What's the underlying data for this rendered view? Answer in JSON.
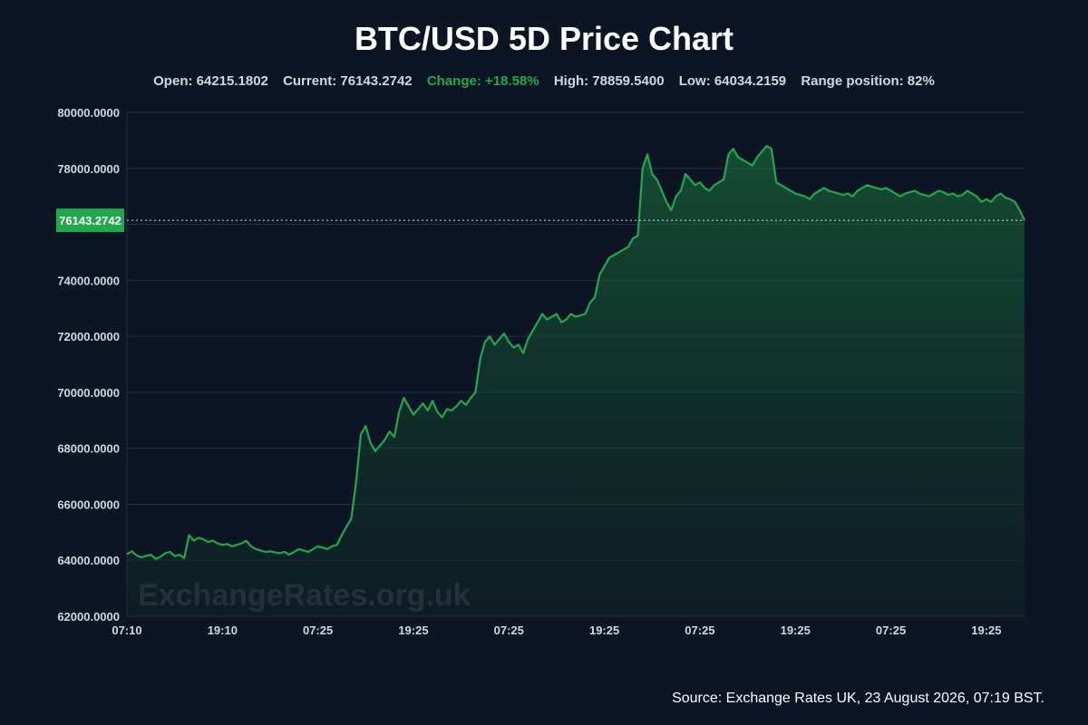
{
  "header": {
    "title": "BTC/USD 5D Price Chart"
  },
  "stats": {
    "open": "Open: 64215.1802",
    "current": "Current: 76143.2742",
    "change": "Change: +18.58%",
    "high": "High: 78859.5400",
    "low": "Low: 64034.2159",
    "range_position": "Range position: 82%"
  },
  "footer": {
    "source": "Source: Exchange Rates UK, 23 August 2026, 07:19 BST."
  },
  "colors": {
    "background": "#0d1524",
    "line": "#22a84c",
    "badge": "#22a84c",
    "grid": "#243048",
    "text": "#cfd6e4"
  },
  "chart_data": {
    "type": "area",
    "watermark": "ExchangeRates.org.uk",
    "current_label": "76143.2742",
    "current_value": 76143.2742,
    "ylim": [
      62000,
      80000
    ],
    "yticks": [
      62000,
      64000,
      66000,
      68000,
      70000,
      72000,
      74000,
      76000,
      78000,
      80000
    ],
    "ytick_labels": [
      "62000.0000",
      "64000.0000",
      "66000.0000",
      "68000.0000",
      "70000.0000",
      "72000.0000",
      "74000.0000",
      "",
      "78000.0000",
      "80000.0000"
    ],
    "x_ticks": [
      {
        "index": 0,
        "label": "07:10"
      },
      {
        "index": 20,
        "label": "19:10"
      },
      {
        "index": 40,
        "label": "07:25"
      },
      {
        "index": 60,
        "label": "19:25"
      },
      {
        "index": 80,
        "label": "07:25"
      },
      {
        "index": 100,
        "label": "19:25"
      },
      {
        "index": 120,
        "label": "07:25"
      },
      {
        "index": 140,
        "label": "19:25"
      },
      {
        "index": 160,
        "label": "07:25"
      },
      {
        "index": 180,
        "label": "19:25"
      }
    ],
    "series": [
      {
        "values": [
          64215,
          64320,
          64180,
          64100,
          64150,
          64200,
          64050,
          64120,
          64250,
          64300,
          64150,
          64200,
          64080,
          64900,
          64700,
          64800,
          64750,
          64650,
          64700,
          64600,
          64550,
          64580,
          64500,
          64550,
          64600,
          64700,
          64500,
          64400,
          64350,
          64300,
          64320,
          64280,
          64250,
          64300,
          64200,
          64300,
          64400,
          64350,
          64300,
          64400,
          64500,
          64450,
          64400,
          64500,
          64550,
          64900,
          65200,
          65500,
          66800,
          68500,
          68800,
          68200,
          67900,
          68100,
          68300,
          68600,
          68400,
          69300,
          69800,
          69500,
          69200,
          69400,
          69600,
          69350,
          69700,
          69300,
          69100,
          69400,
          69350,
          69500,
          69700,
          69550,
          69800,
          70000,
          71200,
          71800,
          72000,
          71700,
          71900,
          72100,
          71800,
          71600,
          71700,
          71400,
          71900,
          72200,
          72500,
          72800,
          72600,
          72700,
          72800,
          72500,
          72600,
          72800,
          72700,
          72750,
          72800,
          73200,
          73400,
          74200,
          74500,
          74800,
          74900,
          75000,
          75100,
          75200,
          75500,
          75600,
          78000,
          78500,
          77800,
          77600,
          77200,
          76800,
          76500,
          77000,
          77200,
          77800,
          77600,
          77400,
          77500,
          77300,
          77200,
          77400,
          77500,
          77600,
          78500,
          78700,
          78400,
          78300,
          78200,
          78100,
          78400,
          78600,
          78800,
          78700,
          77500,
          77400,
          77300,
          77200,
          77100,
          77050,
          77000,
          76900,
          77100,
          77200,
          77300,
          77200,
          77150,
          77100,
          77050,
          77100,
          77000,
          77200,
          77300,
          77400,
          77350,
          77300,
          77250,
          77300,
          77200,
          77100,
          77000,
          77100,
          77150,
          77200,
          77100,
          77050,
          77000,
          77100,
          77200,
          77150,
          77050,
          77100,
          77000,
          77050,
          77200,
          77100,
          77000,
          76800,
          76900,
          76800,
          77000,
          77100,
          76950,
          76900,
          76800,
          76500,
          76143
        ]
      }
    ]
  }
}
